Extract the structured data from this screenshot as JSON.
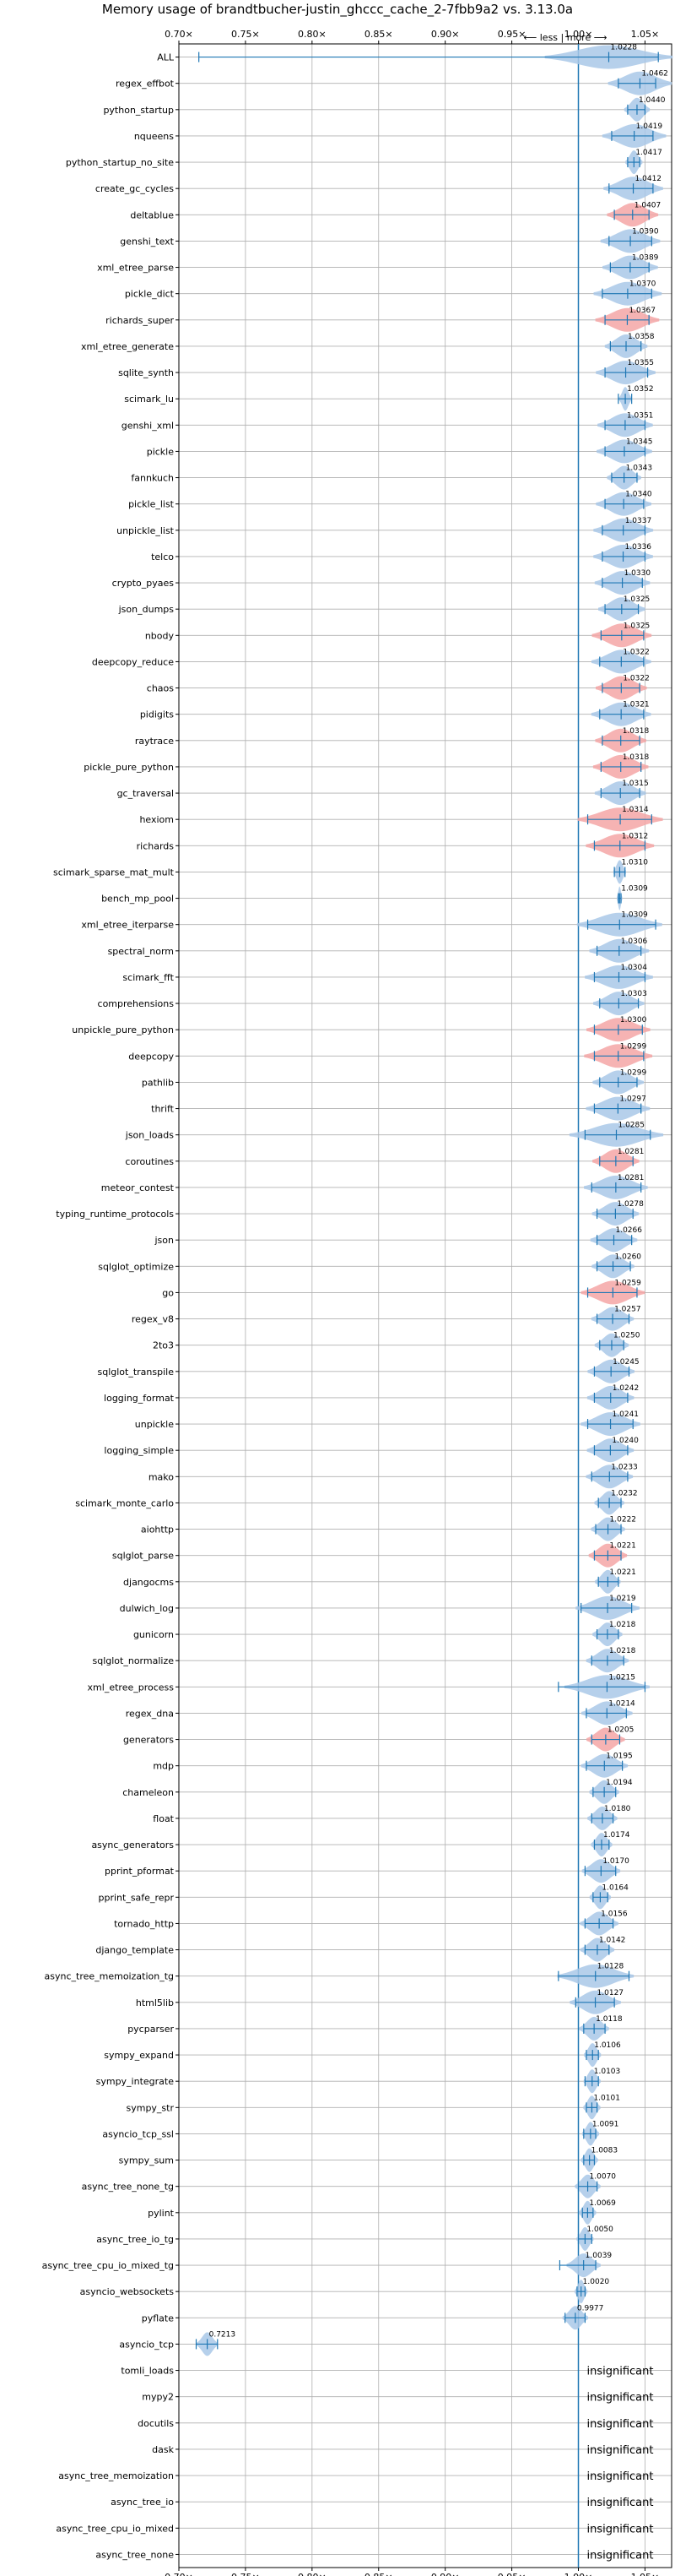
{
  "chart_data": {
    "type": "violin",
    "title": "Memory usage of brandtbucher-justin_ghccc_cache_2-7fbb9a2 vs. 3.13.0a",
    "direction_label": "⟵ less | more ⟶",
    "xlim": [
      0.7,
      1.07
    ],
    "x_ticks": [
      0.7,
      0.75,
      0.8,
      0.85,
      0.9,
      0.95,
      1.0,
      1.05
    ],
    "x_tick_labels": [
      "0.70×",
      "0.75×",
      "0.80×",
      "0.85×",
      "0.90×",
      "0.95×",
      "1.00×",
      "1.05×"
    ],
    "reference_line": 1.0,
    "grid": true,
    "colors": {
      "more": "#f4a6a6",
      "less": "#a9c8e8",
      "whisker": "#1f77b4",
      "reference": "#1f77b4"
    },
    "insignificant_label": "insignificant",
    "benchmarks": [
      {
        "name": "ALL",
        "label": "1.0228",
        "mean": 1.0228,
        "min": 0.715,
        "max": 1.06,
        "spread": 0.03,
        "color": "less"
      },
      {
        "name": "regex_effbot",
        "label": "1.0462",
        "mean": 1.0462,
        "min": 1.03,
        "max": 1.058,
        "spread": 0.015,
        "color": "less"
      },
      {
        "name": "python_startup",
        "label": "1.0440",
        "mean": 1.044,
        "min": 1.037,
        "max": 1.05,
        "spread": 0.006,
        "color": "less"
      },
      {
        "name": "nqueens",
        "label": "1.0419",
        "mean": 1.0419,
        "min": 1.025,
        "max": 1.056,
        "spread": 0.015,
        "color": "less"
      },
      {
        "name": "python_startup_no_site",
        "label": "1.0417",
        "mean": 1.0417,
        "min": 1.037,
        "max": 1.046,
        "spread": 0.004,
        "color": "less"
      },
      {
        "name": "create_gc_cycles",
        "label": "1.0412",
        "mean": 1.0412,
        "min": 1.023,
        "max": 1.056,
        "spread": 0.014,
        "color": "less"
      },
      {
        "name": "deltablue",
        "label": "1.0407",
        "mean": 1.0407,
        "min": 1.027,
        "max": 1.053,
        "spread": 0.012,
        "color": "more"
      },
      {
        "name": "genshi_text",
        "label": "1.0390",
        "mean": 1.039,
        "min": 1.023,
        "max": 1.055,
        "spread": 0.014,
        "color": "less"
      },
      {
        "name": "xml_etree_parse",
        "label": "1.0389",
        "mean": 1.0389,
        "min": 1.024,
        "max": 1.053,
        "spread": 0.013,
        "color": "less"
      },
      {
        "name": "pickle_dict",
        "label": "1.0370",
        "mean": 1.037,
        "min": 1.018,
        "max": 1.055,
        "spread": 0.016,
        "color": "less"
      },
      {
        "name": "richards_super",
        "label": "1.0367",
        "mean": 1.0367,
        "min": 1.02,
        "max": 1.053,
        "spread": 0.015,
        "color": "more"
      },
      {
        "name": "xml_etree_generate",
        "label": "1.0358",
        "mean": 1.0358,
        "min": 1.024,
        "max": 1.047,
        "spread": 0.01,
        "color": "less"
      },
      {
        "name": "sqlite_synth",
        "label": "1.0355",
        "mean": 1.0355,
        "min": 1.02,
        "max": 1.052,
        "spread": 0.014,
        "color": "less"
      },
      {
        "name": "scimark_lu",
        "label": "1.0352",
        "mean": 1.0352,
        "min": 1.03,
        "max": 1.04,
        "spread": 0.003,
        "color": "less"
      },
      {
        "name": "genshi_xml",
        "label": "1.0351",
        "mean": 1.0351,
        "min": 1.02,
        "max": 1.05,
        "spread": 0.013,
        "color": "less"
      },
      {
        "name": "pickle",
        "label": "1.0345",
        "mean": 1.0345,
        "min": 1.02,
        "max": 1.05,
        "spread": 0.013,
        "color": "less"
      },
      {
        "name": "fannkuch",
        "label": "1.0343",
        "mean": 1.0343,
        "min": 1.025,
        "max": 1.044,
        "spread": 0.008,
        "color": "less"
      },
      {
        "name": "pickle_list",
        "label": "1.0340",
        "mean": 1.034,
        "min": 1.02,
        "max": 1.049,
        "spread": 0.013,
        "color": "less"
      },
      {
        "name": "unpickle_list",
        "label": "1.0337",
        "mean": 1.0337,
        "min": 1.018,
        "max": 1.05,
        "spread": 0.014,
        "color": "less"
      },
      {
        "name": "telco",
        "label": "1.0336",
        "mean": 1.0336,
        "min": 1.018,
        "max": 1.05,
        "spread": 0.014,
        "color": "less"
      },
      {
        "name": "crypto_pyaes",
        "label": "1.0330",
        "mean": 1.033,
        "min": 1.018,
        "max": 1.048,
        "spread": 0.013,
        "color": "less"
      },
      {
        "name": "json_dumps",
        "label": "1.0325",
        "mean": 1.0325,
        "min": 1.02,
        "max": 1.045,
        "spread": 0.011,
        "color": "less"
      },
      {
        "name": "nbody",
        "label": "1.0325",
        "mean": 1.0325,
        "min": 1.017,
        "max": 1.049,
        "spread": 0.014,
        "color": "more"
      },
      {
        "name": "deepcopy_reduce",
        "label": "1.0322",
        "mean": 1.0322,
        "min": 1.016,
        "max": 1.049,
        "spread": 0.014,
        "color": "less"
      },
      {
        "name": "chaos",
        "label": "1.0322",
        "mean": 1.0322,
        "min": 1.018,
        "max": 1.046,
        "spread": 0.012,
        "color": "more"
      },
      {
        "name": "pidigits",
        "label": "1.0321",
        "mean": 1.0321,
        "min": 1.016,
        "max": 1.049,
        "spread": 0.014,
        "color": "less"
      },
      {
        "name": "raytrace",
        "label": "1.0318",
        "mean": 1.0318,
        "min": 1.018,
        "max": 1.046,
        "spread": 0.012,
        "color": "more"
      },
      {
        "name": "pickle_pure_python",
        "label": "1.0318",
        "mean": 1.0318,
        "min": 1.017,
        "max": 1.047,
        "spread": 0.013,
        "color": "more"
      },
      {
        "name": "gc_traversal",
        "label": "1.0315",
        "mean": 1.0315,
        "min": 1.017,
        "max": 1.046,
        "spread": 0.012,
        "color": "less"
      },
      {
        "name": "hexiom",
        "label": "1.0314",
        "mean": 1.0314,
        "min": 1.007,
        "max": 1.055,
        "spread": 0.02,
        "color": "more"
      },
      {
        "name": "richards",
        "label": "1.0312",
        "mean": 1.0312,
        "min": 1.012,
        "max": 1.05,
        "spread": 0.016,
        "color": "more"
      },
      {
        "name": "scimark_sparse_mat_mult",
        "label": "1.0310",
        "mean": 1.031,
        "min": 1.027,
        "max": 1.035,
        "spread": 0.003,
        "color": "less"
      },
      {
        "name": "bench_mp_pool",
        "label": "1.0309",
        "mean": 1.0309,
        "min": 1.03,
        "max": 1.032,
        "spread": 0.001,
        "color": "less"
      },
      {
        "name": "xml_etree_iterparse",
        "label": "1.0309",
        "mean": 1.0309,
        "min": 1.007,
        "max": 1.058,
        "spread": 0.02,
        "color": "less"
      },
      {
        "name": "spectral_norm",
        "label": "1.0306",
        "mean": 1.0306,
        "min": 1.014,
        "max": 1.047,
        "spread": 0.014,
        "color": "less"
      },
      {
        "name": "scimark_fft",
        "label": "1.0304",
        "mean": 1.0304,
        "min": 1.012,
        "max": 1.05,
        "spread": 0.016,
        "color": "less"
      },
      {
        "name": "comprehensions",
        "label": "1.0303",
        "mean": 1.0303,
        "min": 1.016,
        "max": 1.045,
        "spread": 0.012,
        "color": "less"
      },
      {
        "name": "unpickle_pure_python",
        "label": "1.0300",
        "mean": 1.03,
        "min": 1.012,
        "max": 1.048,
        "spread": 0.015,
        "color": "more"
      },
      {
        "name": "deepcopy",
        "label": "1.0299",
        "mean": 1.0299,
        "min": 1.012,
        "max": 1.049,
        "spread": 0.016,
        "color": "more"
      },
      {
        "name": "pathlib",
        "label": "1.0299",
        "mean": 1.0299,
        "min": 1.016,
        "max": 1.044,
        "spread": 0.012,
        "color": "less"
      },
      {
        "name": "thrift",
        "label": "1.0297",
        "mean": 1.0297,
        "min": 1.012,
        "max": 1.047,
        "spread": 0.015,
        "color": "less"
      },
      {
        "name": "json_loads",
        "label": "1.0285",
        "mean": 1.0285,
        "min": 1.005,
        "max": 1.054,
        "spread": 0.022,
        "color": "less"
      },
      {
        "name": "coroutines",
        "label": "1.0281",
        "mean": 1.0281,
        "min": 1.016,
        "max": 1.041,
        "spread": 0.011,
        "color": "more"
      },
      {
        "name": "meteor_contest",
        "label": "1.0281",
        "mean": 1.0281,
        "min": 1.01,
        "max": 1.047,
        "spread": 0.015,
        "color": "less"
      },
      {
        "name": "typing_runtime_protocols",
        "label": "1.0278",
        "mean": 1.0278,
        "min": 1.014,
        "max": 1.041,
        "spread": 0.011,
        "color": "less"
      },
      {
        "name": "json",
        "label": "1.0266",
        "mean": 1.0266,
        "min": 1.014,
        "max": 1.04,
        "spread": 0.011,
        "color": "less"
      },
      {
        "name": "sqlglot_optimize",
        "label": "1.0260",
        "mean": 1.026,
        "min": 1.014,
        "max": 1.039,
        "spread": 0.01,
        "color": "less"
      },
      {
        "name": "go",
        "label": "1.0259",
        "mean": 1.0259,
        "min": 1.007,
        "max": 1.044,
        "spread": 0.015,
        "color": "more"
      },
      {
        "name": "regex_v8",
        "label": "1.0257",
        "mean": 1.0257,
        "min": 1.014,
        "max": 1.038,
        "spread": 0.01,
        "color": "less"
      },
      {
        "name": "2to3",
        "label": "1.0250",
        "mean": 1.025,
        "min": 1.016,
        "max": 1.034,
        "spread": 0.008,
        "color": "less"
      },
      {
        "name": "sqlglot_transpile",
        "label": "1.0245",
        "mean": 1.0245,
        "min": 1.012,
        "max": 1.038,
        "spread": 0.011,
        "color": "less"
      },
      {
        "name": "logging_format",
        "label": "1.0242",
        "mean": 1.0242,
        "min": 1.012,
        "max": 1.037,
        "spread": 0.011,
        "color": "less"
      },
      {
        "name": "unpickle",
        "label": "1.0241",
        "mean": 1.0241,
        "min": 1.007,
        "max": 1.041,
        "spread": 0.014,
        "color": "less"
      },
      {
        "name": "logging_simple",
        "label": "1.0240",
        "mean": 1.024,
        "min": 1.012,
        "max": 1.037,
        "spread": 0.011,
        "color": "less"
      },
      {
        "name": "mako",
        "label": "1.0233",
        "mean": 1.0233,
        "min": 1.01,
        "max": 1.037,
        "spread": 0.011,
        "color": "less"
      },
      {
        "name": "scimark_monte_carlo",
        "label": "1.0232",
        "mean": 1.0232,
        "min": 1.015,
        "max": 1.032,
        "spread": 0.007,
        "color": "less"
      },
      {
        "name": "aiohttp",
        "label": "1.0222",
        "mean": 1.0222,
        "min": 1.013,
        "max": 1.032,
        "spread": 0.008,
        "color": "less"
      },
      {
        "name": "sqlglot_parse",
        "label": "1.0221",
        "mean": 1.0221,
        "min": 1.012,
        "max": 1.032,
        "spread": 0.009,
        "color": "more"
      },
      {
        "name": "djangocms",
        "label": "1.0221",
        "mean": 1.0221,
        "min": 1.015,
        "max": 1.03,
        "spread": 0.006,
        "color": "less"
      },
      {
        "name": "dulwich_log",
        "label": "1.0219",
        "mean": 1.0219,
        "min": 1.002,
        "max": 1.04,
        "spread": 0.015,
        "color": "less"
      },
      {
        "name": "gunicorn",
        "label": "1.0218",
        "mean": 1.0218,
        "min": 1.014,
        "max": 1.03,
        "spread": 0.007,
        "color": "less"
      },
      {
        "name": "sqlglot_normalize",
        "label": "1.0218",
        "mean": 1.0218,
        "min": 1.01,
        "max": 1.034,
        "spread": 0.01,
        "color": "less"
      },
      {
        "name": "xml_etree_process",
        "label": "1.0215",
        "mean": 1.0215,
        "min": 0.985,
        "max": 1.05,
        "spread": 0.02,
        "color": "less"
      },
      {
        "name": "regex_dna",
        "label": "1.0214",
        "mean": 1.0214,
        "min": 1.006,
        "max": 1.036,
        "spread": 0.012,
        "color": "less"
      },
      {
        "name": "generators",
        "label": "1.0205",
        "mean": 1.0205,
        "min": 1.01,
        "max": 1.031,
        "spread": 0.009,
        "color": "more"
      },
      {
        "name": "mdp",
        "label": "1.0195",
        "mean": 1.0195,
        "min": 1.006,
        "max": 1.033,
        "spread": 0.011,
        "color": "less"
      },
      {
        "name": "chameleon",
        "label": "1.0194",
        "mean": 1.0194,
        "min": 1.011,
        "max": 1.028,
        "spread": 0.007,
        "color": "less"
      },
      {
        "name": "float",
        "label": "1.0180",
        "mean": 1.018,
        "min": 1.01,
        "max": 1.026,
        "spread": 0.007,
        "color": "less"
      },
      {
        "name": "async_generators",
        "label": "1.0174",
        "mean": 1.0174,
        "min": 1.012,
        "max": 1.023,
        "spread": 0.005,
        "color": "less"
      },
      {
        "name": "pprint_pformat",
        "label": "1.0170",
        "mean": 1.017,
        "min": 1.005,
        "max": 1.028,
        "spread": 0.009,
        "color": "less"
      },
      {
        "name": "pprint_safe_repr",
        "label": "1.0164",
        "mean": 1.0164,
        "min": 1.011,
        "max": 1.022,
        "spread": 0.005,
        "color": "less"
      },
      {
        "name": "tornado_http",
        "label": "1.0156",
        "mean": 1.0156,
        "min": 1.005,
        "max": 1.026,
        "spread": 0.009,
        "color": "less"
      },
      {
        "name": "django_template",
        "label": "1.0142",
        "mean": 1.0142,
        "min": 1.005,
        "max": 1.023,
        "spread": 0.008,
        "color": "less"
      },
      {
        "name": "async_tree_memoization_tg",
        "label": "1.0128",
        "mean": 1.0128,
        "min": 0.985,
        "max": 1.038,
        "spread": 0.018,
        "color": "less"
      },
      {
        "name": "html5lib",
        "label": "1.0127",
        "mean": 1.0127,
        "min": 0.998,
        "max": 1.027,
        "spread": 0.012,
        "color": "less"
      },
      {
        "name": "pycparser",
        "label": "1.0118",
        "mean": 1.0118,
        "min": 1.004,
        "max": 1.02,
        "spread": 0.007,
        "color": "less"
      },
      {
        "name": "sympy_expand",
        "label": "1.0106",
        "mean": 1.0106,
        "min": 1.006,
        "max": 1.015,
        "spread": 0.004,
        "color": "less"
      },
      {
        "name": "sympy_integrate",
        "label": "1.0103",
        "mean": 1.0103,
        "min": 1.005,
        "max": 1.015,
        "spread": 0.004,
        "color": "less"
      },
      {
        "name": "sympy_str",
        "label": "1.0101",
        "mean": 1.0101,
        "min": 1.006,
        "max": 1.014,
        "spread": 0.004,
        "color": "less"
      },
      {
        "name": "asyncio_tcp_ssl",
        "label": "1.0091",
        "mean": 1.0091,
        "min": 1.004,
        "max": 1.013,
        "spread": 0.004,
        "color": "less"
      },
      {
        "name": "sympy_sum",
        "label": "1.0083",
        "mean": 1.0083,
        "min": 1.004,
        "max": 1.012,
        "spread": 0.004,
        "color": "less"
      },
      {
        "name": "async_tree_none_tg",
        "label": "1.0070",
        "mean": 1.007,
        "min": 1.0,
        "max": 1.014,
        "spread": 0.006,
        "color": "less"
      },
      {
        "name": "pylint",
        "label": "1.0069",
        "mean": 1.0069,
        "min": 1.003,
        "max": 1.011,
        "spread": 0.004,
        "color": "less"
      },
      {
        "name": "async_tree_io_tg",
        "label": "1.0050",
        "mean": 1.005,
        "min": 1.0,
        "max": 1.01,
        "spread": 0.004,
        "color": "less"
      },
      {
        "name": "async_tree_cpu_io_mixed_tg",
        "label": "1.0039",
        "mean": 1.0039,
        "min": 0.986,
        "max": 1.013,
        "spread": 0.008,
        "color": "less"
      },
      {
        "name": "asyncio_websockets",
        "label": "1.0020",
        "mean": 1.002,
        "min": 0.999,
        "max": 1.005,
        "spread": 0.003,
        "color": "less"
      },
      {
        "name": "pyflate",
        "label": "0.9977",
        "mean": 0.9977,
        "min": 0.99,
        "max": 1.005,
        "spread": 0.006,
        "color": "less"
      },
      {
        "name": "asyncio_tcp",
        "label": "0.7213",
        "mean": 0.7213,
        "min": 0.713,
        "max": 0.729,
        "spread": 0.005,
        "color": "less"
      },
      {
        "name": "tomli_loads",
        "label": "",
        "insignificant": true
      },
      {
        "name": "mypy2",
        "label": "",
        "insignificant": true
      },
      {
        "name": "docutils",
        "label": "",
        "insignificant": true
      },
      {
        "name": "dask",
        "label": "",
        "insignificant": true
      },
      {
        "name": "async_tree_memoization",
        "label": "",
        "insignificant": true
      },
      {
        "name": "async_tree_io",
        "label": "",
        "insignificant": true
      },
      {
        "name": "async_tree_cpu_io_mixed",
        "label": "",
        "insignificant": true
      },
      {
        "name": "async_tree_none",
        "label": "",
        "insignificant": true
      }
    ]
  }
}
